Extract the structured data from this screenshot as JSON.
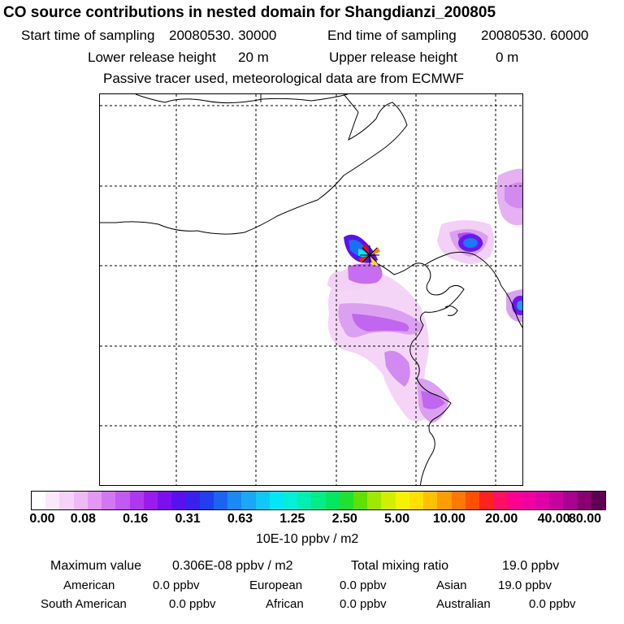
{
  "header": {
    "title": "CO  source contributions in nested domain for Shangdianzi_200805",
    "start_label": "Start time of sampling",
    "start_value": "20080530. 30000",
    "end_label": "End time of sampling",
    "end_value": "20080530. 60000",
    "lower_label": "Lower release height",
    "lower_value": "20 m",
    "upper_label": "Upper release height",
    "upper_value": "0 m",
    "note": "Passive tracer used, meteorological data are from ECMWF"
  },
  "colorbar": {
    "ticks": [
      "0.00",
      "0.08",
      "0.16",
      "0.31",
      "0.63",
      "1.25",
      "2.50",
      "5.00",
      "10.00",
      "20.00",
      "40.00",
      "80.00"
    ],
    "unit": "10E-10 ppbv / m2",
    "colors": [
      "#ffffff",
      "#fbe8fb",
      "#f5d2f7",
      "#eebaf5",
      "#e398f3",
      "#d277f1",
      "#c259f0",
      "#ae38ef",
      "#9a1ced",
      "#7a10ee",
      "#5a10ee",
      "#3a20ef",
      "#2040f0",
      "#1a64f2",
      "#1a88f5",
      "#18a8f7",
      "#10c8f8",
      "#00e8f4",
      "#00f0d8",
      "#00f0b0",
      "#00ee88",
      "#00e860",
      "#20e030",
      "#60e000",
      "#a0e800",
      "#d0f000",
      "#f4f400",
      "#ffe000",
      "#ffc000",
      "#ff9c00",
      "#ff7800",
      "#ff5000",
      "#ff2020",
      "#ff1060",
      "#ff0090",
      "#f000a0",
      "#e000a8",
      "#c800a0",
      "#a80090",
      "#880070",
      "#600050"
    ]
  },
  "stats": {
    "max_label": "Maximum value",
    "max_value": "0.306E-08 ppbv / m2",
    "total_label": "Total mixing ratio",
    "total_value": "19.0 ppbv",
    "american_label": "American",
    "american_value": "0.0 ppbv",
    "european_label": "European",
    "european_value": "0.0 ppbv",
    "asian_label": "Asian",
    "asian_value": "19.0 ppbv",
    "southamerican_label": "South American",
    "southamerican_value": "0.0 ppbv",
    "african_label": "African",
    "african_value": "0.0 ppbv",
    "australian_label": "Australian",
    "australian_value": "0.0 ppbv"
  }
}
